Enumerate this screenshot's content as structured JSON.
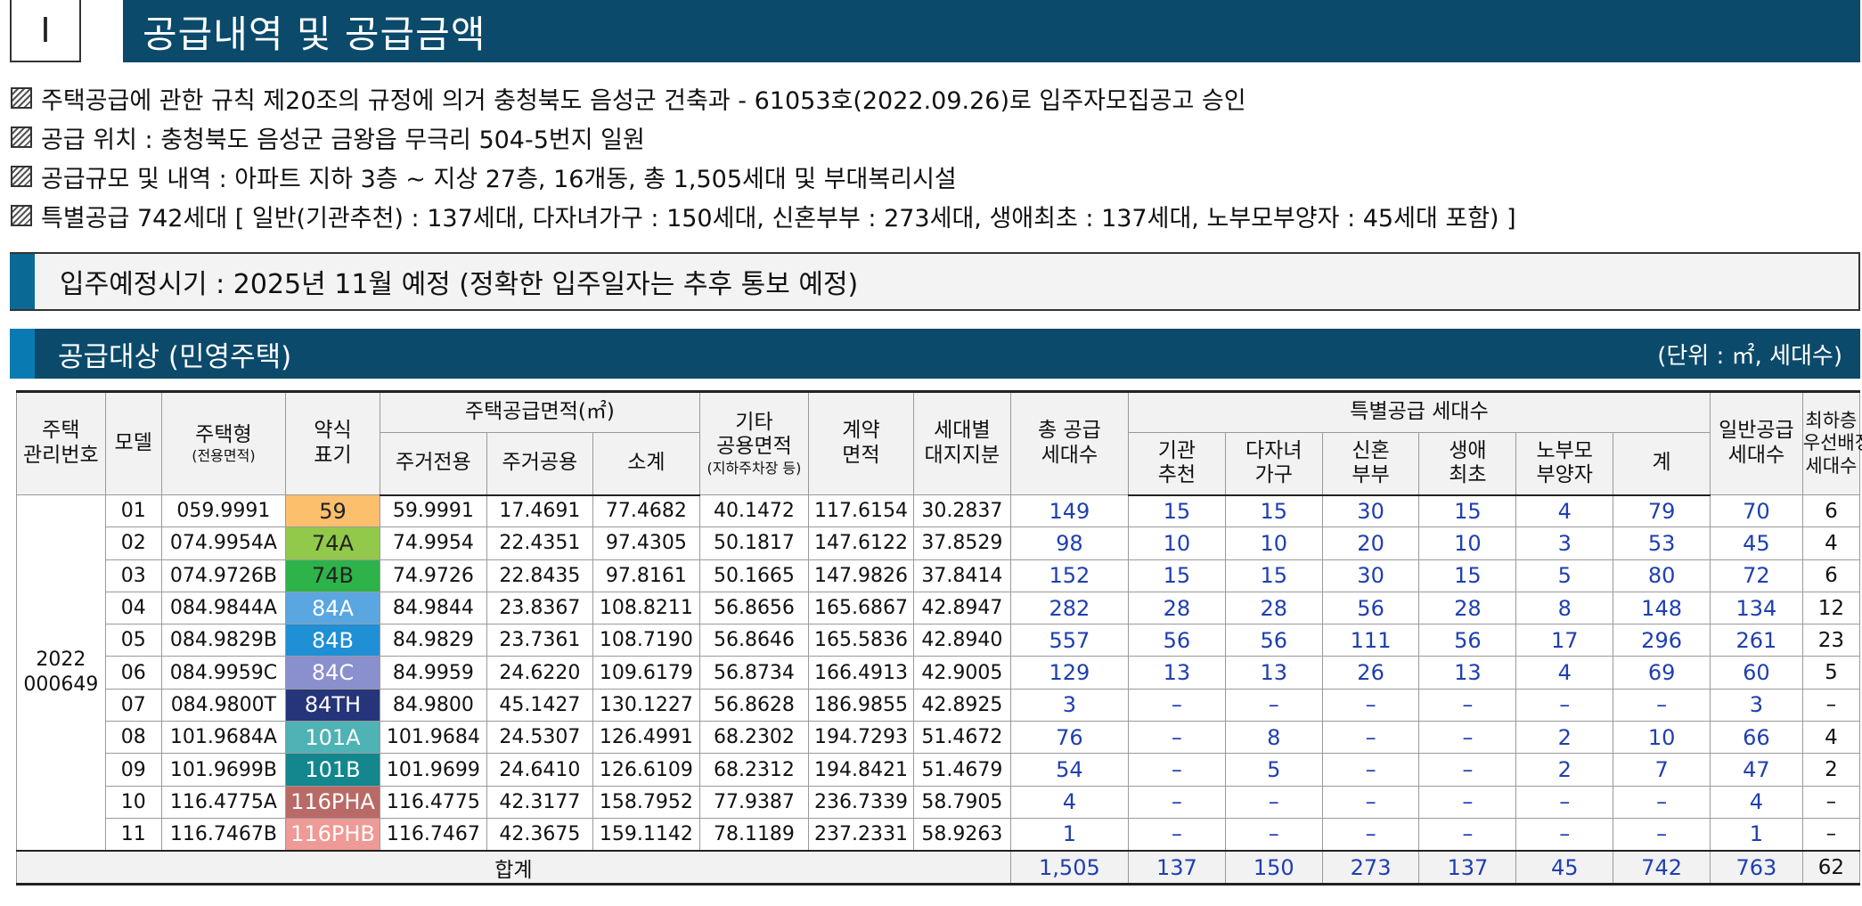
{
  "header": {
    "number": "I",
    "title": "공급내역 및 공급금액"
  },
  "notes": [
    "주택공급에 관한 규칙 제20조의 규정에 의거 충청북도 음성군 건축과 - 61053호(2022.09.26)로 입주자모집공고 승인",
    "공급 위치 : 충청북도 음성군 금왕읍 무극리 504-5번지 일원",
    "공급규모 및 내역 : 아파트 지하 3층 ~ 지상 27층, 16개동, 총 1,505세대 및 부대복리시설",
    "특별공급 742세대 [ 일반(기관추천) : 137세대, 다자녀가구 : 150세대, 신혼부부 : 273세대, 생애최초 : 137세대, 노부모부양자 : 45세대 포함) ]"
  ],
  "movein": "입주예정시기 : 2025년 11월 예정 (정확한 입주일자는 추후 통보 예정)",
  "section": {
    "title": "공급대상 (민영주택)",
    "unit": "(단위 : ㎡, 세대수)"
  },
  "table": {
    "headers": {
      "mgmt": "주택\n관리번호",
      "model": "모델",
      "type": "주택형",
      "type_sub": "(전용면적)",
      "abbr": "약식\n표기",
      "area_group": "주택공급면적(㎡)",
      "area_exclusive": "주거전용",
      "area_common": "주거공용",
      "area_subtotal": "소계",
      "other_common": "기타\n공용면적",
      "other_common_sub": "(지하주차장 등)",
      "contract": "계약\n면적",
      "land": "세대별\n대지지분",
      "total": "총 공급\n세대수",
      "special_group": "특별공급 세대수",
      "sp_inst": "기관\n추천",
      "sp_multi": "다자녀\n가구",
      "sp_newly": "신혼\n부부",
      "sp_first": "생애\n최초",
      "sp_elder": "노부모\n부양자",
      "sp_sum": "계",
      "general": "일반공급\n세대수",
      "lowest": "최하층\n우선배정\n세대수"
    },
    "mgmt_number": "2022\n000649",
    "rows": [
      {
        "model": "01",
        "type": "059.9991",
        "abbr": "59",
        "abbr_bg": "#fbbf6e",
        "abbr_fg": "#222222",
        "excl": "59.9991",
        "common": "17.4691",
        "sub": "77.4682",
        "other": "40.1472",
        "contract": "117.6154",
        "land": "30.2837",
        "total": "149",
        "inst": "15",
        "multi": "15",
        "newly": "30",
        "first": "15",
        "elder": "4",
        "sum": "79",
        "general": "70",
        "lowest": "6"
      },
      {
        "model": "02",
        "type": "074.9954A",
        "abbr": "74A",
        "abbr_bg": "#92c94a",
        "abbr_fg": "#222222",
        "excl": "74.9954",
        "common": "22.4351",
        "sub": "97.4305",
        "other": "50.1817",
        "contract": "147.6122",
        "land": "37.8529",
        "total": "98",
        "inst": "10",
        "multi": "10",
        "newly": "20",
        "first": "10",
        "elder": "3",
        "sum": "53",
        "general": "45",
        "lowest": "4"
      },
      {
        "model": "03",
        "type": "074.9726B",
        "abbr": "74B",
        "abbr_bg": "#2db34a",
        "abbr_fg": "#222222",
        "excl": "74.9726",
        "common": "22.8435",
        "sub": "97.8161",
        "other": "50.1665",
        "contract": "147.9826",
        "land": "37.8414",
        "total": "152",
        "inst": "15",
        "multi": "15",
        "newly": "30",
        "first": "15",
        "elder": "5",
        "sum": "80",
        "general": "72",
        "lowest": "6"
      },
      {
        "model": "04",
        "type": "084.9844A",
        "abbr": "84A",
        "abbr_bg": "#5aa6e0",
        "abbr_fg": "#ffffff",
        "excl": "84.9844",
        "common": "23.8367",
        "sub": "108.8211",
        "other": "56.8656",
        "contract": "165.6867",
        "land": "42.8947",
        "total": "282",
        "inst": "28",
        "multi": "28",
        "newly": "56",
        "first": "28",
        "elder": "8",
        "sum": "148",
        "general": "134",
        "lowest": "12"
      },
      {
        "model": "05",
        "type": "084.9829B",
        "abbr": "84B",
        "abbr_bg": "#1f8fd6",
        "abbr_fg": "#ffffff",
        "excl": "84.9829",
        "common": "23.7361",
        "sub": "108.7190",
        "other": "56.8646",
        "contract": "165.5836",
        "land": "42.8940",
        "total": "557",
        "inst": "56",
        "multi": "56",
        "newly": "111",
        "first": "56",
        "elder": "17",
        "sum": "296",
        "general": "261",
        "lowest": "23"
      },
      {
        "model": "06",
        "type": "084.9959C",
        "abbr": "84C",
        "abbr_bg": "#8a8fce",
        "abbr_fg": "#ffffff",
        "excl": "84.9959",
        "common": "24.6220",
        "sub": "109.6179",
        "other": "56.8734",
        "contract": "166.4913",
        "land": "42.9005",
        "total": "129",
        "inst": "13",
        "multi": "13",
        "newly": "26",
        "first": "13",
        "elder": "4",
        "sum": "69",
        "general": "60",
        "lowest": "5"
      },
      {
        "model": "07",
        "type": "084.9800T",
        "abbr": "84TH",
        "abbr_bg": "#26357a",
        "abbr_fg": "#ffffff",
        "excl": "84.9800",
        "common": "45.1427",
        "sub": "130.1227",
        "other": "56.8628",
        "contract": "186.9855",
        "land": "42.8925",
        "total": "3",
        "inst": "–",
        "multi": "–",
        "newly": "–",
        "first": "–",
        "elder": "–",
        "sum": "–",
        "general": "3",
        "lowest": "–"
      },
      {
        "model": "08",
        "type": "101.9684A",
        "abbr": "101A",
        "abbr_bg": "#4fb2b4",
        "abbr_fg": "#ffffff",
        "excl": "101.9684",
        "common": "24.5307",
        "sub": "126.4991",
        "other": "68.2302",
        "contract": "194.7293",
        "land": "51.4672",
        "total": "76",
        "inst": "–",
        "multi": "8",
        "newly": "–",
        "first": "–",
        "elder": "2",
        "sum": "10",
        "general": "66",
        "lowest": "4"
      },
      {
        "model": "09",
        "type": "101.9699B",
        "abbr": "101B",
        "abbr_bg": "#13868e",
        "abbr_fg": "#ffffff",
        "excl": "101.9699",
        "common": "24.6410",
        "sub": "126.6109",
        "other": "68.2312",
        "contract": "194.8421",
        "land": "51.4679",
        "total": "54",
        "inst": "–",
        "multi": "5",
        "newly": "–",
        "first": "–",
        "elder": "2",
        "sum": "7",
        "general": "47",
        "lowest": "2"
      },
      {
        "model": "10",
        "type": "116.4775A",
        "abbr": "116PHA",
        "abbr_bg": "#b96a66",
        "abbr_fg": "#ffffff",
        "excl": "116.4775",
        "common": "42.3177",
        "sub": "158.7952",
        "other": "77.9387",
        "contract": "236.7339",
        "land": "58.7905",
        "total": "4",
        "inst": "–",
        "multi": "–",
        "newly": "–",
        "first": "–",
        "elder": "–",
        "sum": "–",
        "general": "4",
        "lowest": "–"
      },
      {
        "model": "11",
        "type": "116.7467B",
        "abbr": "116PHB",
        "abbr_bg": "#ef9a96",
        "abbr_fg": "#ffffff",
        "excl": "116.7467",
        "common": "42.3675",
        "sub": "159.1142",
        "other": "78.1189",
        "contract": "237.2331",
        "land": "58.9263",
        "total": "1",
        "inst": "–",
        "multi": "–",
        "newly": "–",
        "first": "–",
        "elder": "–",
        "sum": "–",
        "general": "1",
        "lowest": "–"
      }
    ],
    "footer": {
      "label": "합계",
      "total": "1,505",
      "inst": "137",
      "multi": "150",
      "newly": "273",
      "first": "137",
      "elder": "45",
      "sum": "742",
      "general": "763",
      "lowest": "62"
    }
  },
  "colors": {
    "header_bar": "#0b4a6b",
    "accent": "#0b6a95",
    "number_blue": "#1f3fb0"
  }
}
